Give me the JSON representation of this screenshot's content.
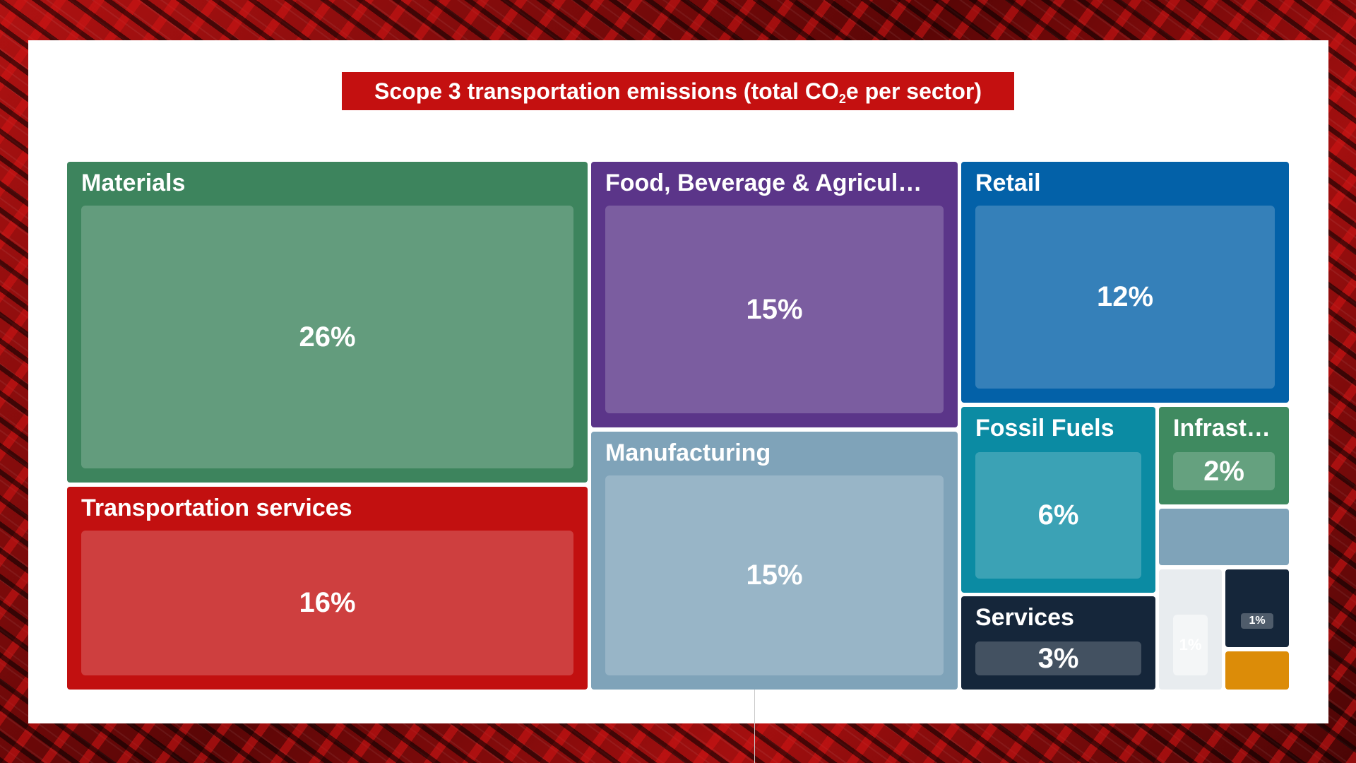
{
  "chart_data": {
    "type": "treemap",
    "title_prefix": "Scope 3 transportation emissions (total CO",
    "title_sub": "2",
    "title_suffix": "e per sector)",
    "nodes": [
      {
        "name": "Materials",
        "value": "26%",
        "color": "#3d845d"
      },
      {
        "name": "Transportation services",
        "value": "16%",
        "color": "#c21010"
      },
      {
        "name": "Food, Beverage & Agricul…",
        "value": "15%",
        "color": "#5b3589"
      },
      {
        "name": "Manufacturing",
        "value": "15%",
        "color": "#7fa3b9"
      },
      {
        "name": "Retail",
        "value": "12%",
        "color": "#0361a8"
      },
      {
        "name": "Fossil Fuels",
        "value": "6%",
        "color": "#0b8ba3"
      },
      {
        "name": "Infrast…",
        "value": "2%",
        "color": "#3f8a60"
      },
      {
        "name": "Services",
        "value": "3%",
        "color": "#15263a"
      },
      {
        "name": "",
        "value": "",
        "color": "#7fa3b9"
      },
      {
        "name": "",
        "value": "1%",
        "color": "#e8ecef"
      },
      {
        "name": "",
        "value": "1%",
        "color": "#15263a"
      },
      {
        "name": "",
        "value": "",
        "color": "#dc8c08"
      }
    ]
  }
}
